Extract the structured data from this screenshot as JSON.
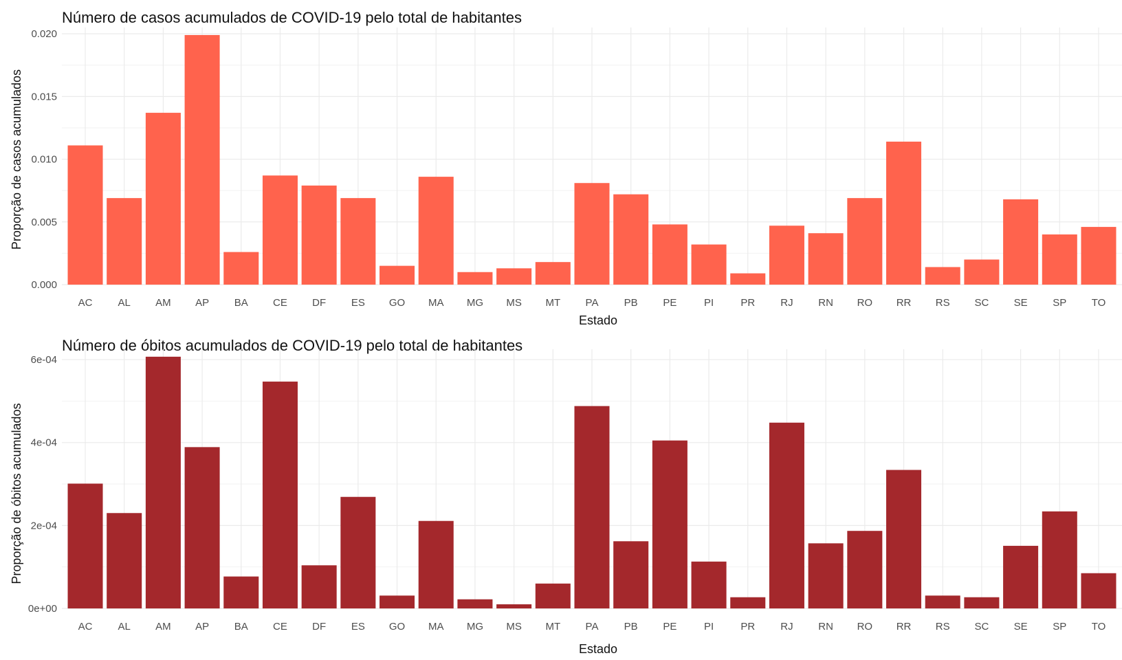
{
  "chart_data": [
    {
      "type": "bar",
      "title": "Número de casos acumulados de COVID-19 pelo total de habitantes",
      "xlabel": "Estado",
      "ylabel": "Proporção de casos acumulados",
      "categories": [
        "AC",
        "AL",
        "AM",
        "AP",
        "BA",
        "CE",
        "DF",
        "ES",
        "GO",
        "MA",
        "MG",
        "MS",
        "MT",
        "PA",
        "PB",
        "PE",
        "PI",
        "PR",
        "RJ",
        "RN",
        "RO",
        "RR",
        "RS",
        "SC",
        "SE",
        "SP",
        "TO"
      ],
      "values": [
        0.0111,
        0.0069,
        0.0137,
        0.0199,
        0.0026,
        0.0087,
        0.0079,
        0.0069,
        0.0015,
        0.0086,
        0.001,
        0.0013,
        0.0018,
        0.0081,
        0.0072,
        0.0048,
        0.0032,
        0.0009,
        0.0047,
        0.0041,
        0.0069,
        0.0114,
        0.0014,
        0.002,
        0.0068,
        0.004,
        0.0046
      ],
      "ylim": [
        0,
        0.0205
      ],
      "yticks": [
        0.0,
        0.005,
        0.01,
        0.015,
        0.02
      ],
      "ytick_labels": [
        "0.000",
        "0.005",
        "0.010",
        "0.015",
        "0.020"
      ],
      "bar_color": "#ff634d",
      "grid": true
    },
    {
      "type": "bar",
      "title": "Número de óbitos acumulados de COVID-19 pelo total de habitantes",
      "xlabel": "Estado",
      "ylabel": "Proporção de óbitos acumulados",
      "categories": [
        "AC",
        "AL",
        "AM",
        "AP",
        "BA",
        "CE",
        "DF",
        "ES",
        "GO",
        "MA",
        "MG",
        "MS",
        "MT",
        "PA",
        "PB",
        "PE",
        "PI",
        "PR",
        "RJ",
        "RN",
        "RO",
        "RR",
        "RS",
        "SC",
        "SE",
        "SP",
        "TO"
      ],
      "values": [
        0.000301,
        0.00023,
        0.000607,
        0.000389,
        7.7e-05,
        0.000547,
        0.000104,
        0.000269,
        3.1e-05,
        0.000211,
        2.2e-05,
        1e-05,
        6e-05,
        0.000488,
        0.000162,
        0.000405,
        0.000113,
        2.7e-05,
        0.000448,
        0.000157,
        0.000187,
        0.000334,
        3.1e-05,
        2.7e-05,
        0.000151,
        0.000234,
        8.5e-05
      ],
      "ylim": [
        0,
        0.000625
      ],
      "yticks": [
        0,
        0.0002,
        0.0004,
        0.0006
      ],
      "ytick_labels": [
        "0e+00",
        "2e-04",
        "4e-04",
        "6e-04"
      ],
      "bar_color": "#a4282c",
      "grid": true
    }
  ]
}
